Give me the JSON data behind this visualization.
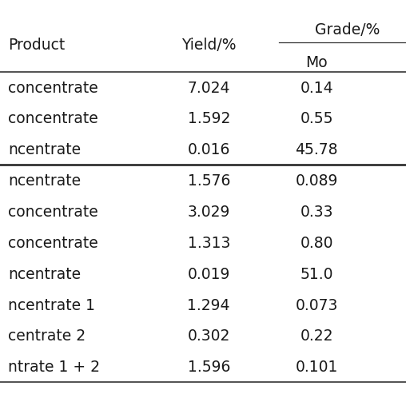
{
  "col_header_top": "Grade/%",
  "col_header_sub": "Mo",
  "col1_header": "Product",
  "col2_header": "Yield/%",
  "rows": [
    [
      "concentrate",
      "7.024",
      "0.14"
    ],
    [
      "concentrate",
      "1.592",
      "0.55"
    ],
    [
      "ncentrate",
      "0.016",
      "45.78"
    ],
    [
      "ncentrate",
      "1.576",
      "0.089"
    ],
    [
      "concentrate",
      "3.029",
      "0.33"
    ],
    [
      "concentrate",
      "1.313",
      "0.80"
    ],
    [
      "ncentrate",
      "0.019",
      "51.0"
    ],
    [
      "ncentrate 1",
      "1.294",
      "0.073"
    ],
    [
      "centrate 2",
      "0.302",
      "0.22"
    ],
    [
      "ntrate 1 + 2",
      "1.596",
      "0.101"
    ]
  ],
  "section_break_after_row": 3,
  "bg_color": "#ffffff",
  "text_color": "#1a1a1a",
  "line_color": "#333333",
  "font_size": 13.5,
  "header_font_size": 13.5
}
